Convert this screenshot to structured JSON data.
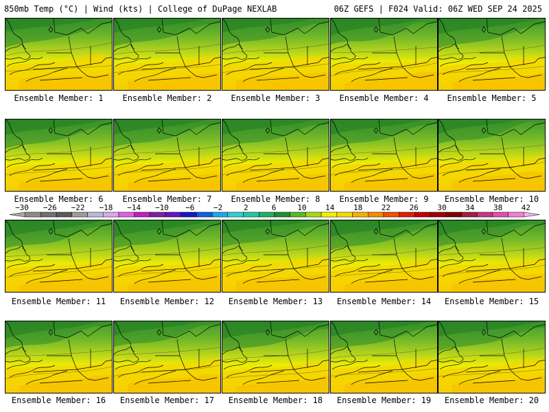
{
  "header": {
    "left_title": "850mb Temp (°C) | Wind (kts) | College of DuPage NEXLAB",
    "right_title": "06Z GEFS | F024 Valid: 06Z WED SEP 24 2025"
  },
  "panels": [
    {
      "label": "Ensemble Member: 1"
    },
    {
      "label": "Ensemble Member: 2"
    },
    {
      "label": "Ensemble Member: 3"
    },
    {
      "label": "Ensemble Member: 4"
    },
    {
      "label": "Ensemble Member: 5"
    },
    {
      "label": "Ensemble Member: 6"
    },
    {
      "label": "Ensemble Member: 7"
    },
    {
      "label": "Ensemble Member: 8"
    },
    {
      "label": "Ensemble Member: 9"
    },
    {
      "label": "Ensemble Member: 10"
    },
    {
      "label": "Ensemble Member: 11"
    },
    {
      "label": "Ensemble Member: 12"
    },
    {
      "label": "Ensemble Member: 13"
    },
    {
      "label": "Ensemble Member: 14"
    },
    {
      "label": "Ensemble Member: 15"
    },
    {
      "label": "Ensemble Member: 16"
    },
    {
      "label": "Ensemble Member: 17"
    },
    {
      "label": "Ensemble Member: 18"
    },
    {
      "label": "Ensemble Member: 19"
    },
    {
      "label": "Ensemble Member: 20"
    }
  ],
  "colorbar": {
    "ticks": [
      "−30",
      "−26",
      "−22",
      "−18",
      "−14",
      "−10",
      "−6",
      "−2",
      "2",
      "6",
      "10",
      "14",
      "18",
      "22",
      "26",
      "30",
      "34",
      "38",
      "42"
    ],
    "colors": [
      "#a8a8a8",
      "#8c8c8c",
      "#707070",
      "#5a5a5a",
      "#9c9c9c",
      "#b8b8d8",
      "#d8a8e8",
      "#e060e0",
      "#c020c0",
      "#8020a0",
      "#6018c0",
      "#1818c0",
      "#1060e0",
      "#20a8e8",
      "#30d0d0",
      "#20c8a0",
      "#20b060",
      "#209030",
      "#58b828",
      "#a8d818",
      "#f0f000",
      "#f8d800",
      "#f8b000",
      "#f88800",
      "#f05000",
      "#e02000",
      "#c00000",
      "#a00000",
      "#800000",
      "#a02040",
      "#c83880",
      "#e050b0",
      "#f080d0",
      "#f8b0e8"
    ]
  }
}
